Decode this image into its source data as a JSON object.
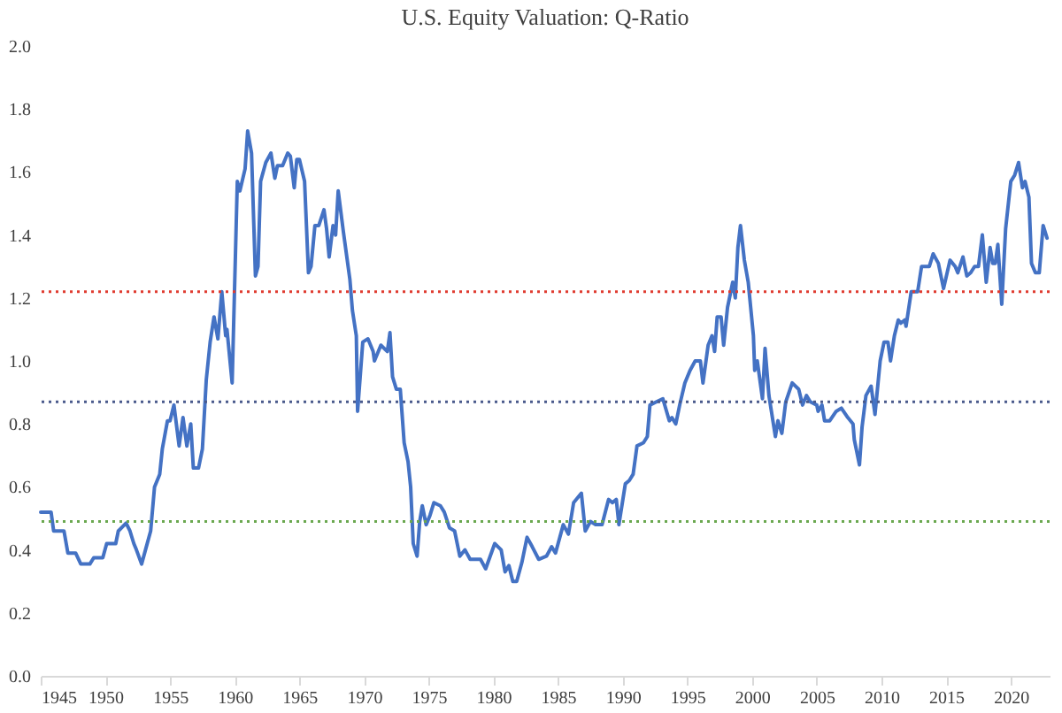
{
  "chart_data": {
    "type": "line",
    "title": "U.S. Equity Valuation: Q-Ratio",
    "xlim": [
      1945,
      2023
    ],
    "xticks": [
      1945,
      1950,
      1955,
      1960,
      1965,
      1970,
      1975,
      1980,
      1985,
      1990,
      1995,
      2000,
      2005,
      2010,
      2015,
      2020
    ],
    "ylim": [
      0,
      2
    ],
    "yticks": [
      {
        "value": 0,
        "label": "0.0"
      },
      0.2,
      0.4,
      0.6,
      0.8,
      {
        "value": 1,
        "label": "1.0"
      },
      1.2,
      1.4,
      1.6,
      1.8,
      {
        "value": 2,
        "label": "2.0"
      }
    ],
    "grid": false,
    "marker": "none",
    "line_style": "solid",
    "ref_lines": [
      {
        "axis": "y",
        "value": 1.22,
        "color": "#e03c31",
        "line_style": "dotted"
      },
      {
        "axis": "y",
        "value": 0.87,
        "color": "#4a5a8c",
        "line_style": "dotted"
      },
      {
        "axis": "y",
        "value": 0.49,
        "color": "#6aa84f",
        "line_style": "dotted"
      }
    ],
    "series": [
      {
        "color": "#4472c4",
        "x": [
          1945.0,
          1945.8,
          1946.0,
          1946.8,
          1947.1,
          1947.7,
          1948.1,
          1948.8,
          1949.1,
          1949.8,
          1950.1,
          1950.8,
          1951.0,
          1951.6,
          1951.9,
          1952.2,
          1952.4,
          1952.8,
          1953.1,
          1953.5,
          1953.8,
          1954.2,
          1954.4,
          1954.8,
          1955.0,
          1955.3,
          1955.7,
          1956.0,
          1956.3,
          1956.6,
          1956.8,
          1957.2,
          1957.5,
          1957.8,
          1958.1,
          1958.4,
          1958.7,
          1959.0,
          1959.3,
          1959.4,
          1959.8,
          1960.2,
          1960.4,
          1960.8,
          1961.0,
          1961.3,
          1961.6,
          1961.8,
          1962.0,
          1962.4,
          1962.8,
          1963.1,
          1963.3,
          1963.7,
          1964.1,
          1964.3,
          1964.6,
          1964.8,
          1965.0,
          1965.4,
          1965.7,
          1965.9,
          1966.2,
          1966.5,
          1966.9,
          1967.1,
          1967.3,
          1967.6,
          1967.8,
          1968.0,
          1968.4,
          1968.9,
          1969.1,
          1969.4,
          1969.5,
          1969.9,
          1970.3,
          1970.7,
          1970.8,
          1971.3,
          1971.8,
          1972.0,
          1972.2,
          1972.5,
          1972.8,
          1973.1,
          1973.4,
          1973.6,
          1973.8,
          1974.1,
          1974.3,
          1974.5,
          1974.8,
          1975.1,
          1975.4,
          1975.9,
          1976.2,
          1976.6,
          1977.0,
          1977.4,
          1977.8,
          1978.2,
          1978.5,
          1979.0,
          1979.4,
          1980.1,
          1980.6,
          1980.9,
          1981.2,
          1981.5,
          1981.8,
          1982.2,
          1982.6,
          1983.0,
          1983.5,
          1984.1,
          1984.5,
          1984.8,
          1985.4,
          1985.8,
          1986.2,
          1986.8,
          1987.1,
          1987.5,
          1987.9,
          1988.4,
          1988.9,
          1989.2,
          1989.5,
          1989.7,
          1990.2,
          1990.5,
          1990.8,
          1991.1,
          1991.6,
          1991.9,
          1992.1,
          1992.6,
          1993.1,
          1993.6,
          1993.8,
          1994.1,
          1994.4,
          1994.8,
          1995.2,
          1995.6,
          1996.0,
          1996.2,
          1996.6,
          1996.9,
          1997.1,
          1997.3,
          1997.6,
          1997.8,
          1998.1,
          1998.5,
          1998.7,
          1998.9,
          1999.1,
          1999.4,
          1999.7,
          2000.1,
          2000.2,
          2000.4,
          2000.8,
          2001.0,
          2001.3,
          2001.8,
          2002.0,
          2002.3,
          2002.6,
          2003.1,
          2003.6,
          2003.9,
          2004.2,
          2004.5,
          2005.0,
          2005.1,
          2005.4,
          2005.6,
          2006.0,
          2006.5,
          2006.9,
          2007.4,
          2007.8,
          2007.9,
          2008.3,
          2008.5,
          2008.8,
          2009.2,
          2009.5,
          2009.9,
          2010.2,
          2010.5,
          2010.7,
          2011.0,
          2011.3,
          2011.5,
          2011.8,
          2011.9,
          2012.3,
          2012.8,
          2013.1,
          2013.4,
          2013.7,
          2014.0,
          2014.4,
          2014.8,
          2015.3,
          2015.7,
          2015.9,
          2016.3,
          2016.6,
          2016.9,
          2017.2,
          2017.5,
          2017.8,
          2018.1,
          2018.4,
          2018.6,
          2018.8,
          2019.0,
          2019.3,
          2019.6,
          2020.0,
          2020.3,
          2020.6,
          2020.9,
          2021.1,
          2021.4,
          2021.6,
          2021.9,
          2022.2,
          2022.5,
          2022.8
        ],
        "values": [
          0.52,
          0.52,
          0.46,
          0.46,
          0.39,
          0.39,
          0.355,
          0.355,
          0.375,
          0.375,
          0.42,
          0.42,
          0.46,
          0.485,
          0.46,
          0.42,
          0.4,
          0.355,
          0.4,
          0.46,
          0.6,
          0.64,
          0.72,
          0.81,
          0.81,
          0.86,
          0.73,
          0.82,
          0.73,
          0.8,
          0.66,
          0.66,
          0.72,
          0.94,
          1.06,
          1.14,
          1.07,
          1.22,
          1.08,
          1.1,
          0.93,
          1.57,
          1.54,
          1.61,
          1.73,
          1.66,
          1.27,
          1.3,
          1.57,
          1.63,
          1.66,
          1.58,
          1.62,
          1.62,
          1.66,
          1.65,
          1.55,
          1.64,
          1.64,
          1.57,
          1.28,
          1.3,
          1.43,
          1.43,
          1.48,
          1.42,
          1.33,
          1.43,
          1.4,
          1.54,
          1.41,
          1.26,
          1.16,
          1.08,
          0.84,
          1.06,
          1.07,
          1.03,
          1.0,
          1.05,
          1.03,
          1.09,
          0.95,
          0.91,
          0.91,
          0.74,
          0.68,
          0.6,
          0.42,
          0.38,
          0.49,
          0.54,
          0.48,
          0.51,
          0.55,
          0.54,
          0.52,
          0.47,
          0.46,
          0.38,
          0.4,
          0.37,
          0.37,
          0.37,
          0.34,
          0.42,
          0.4,
          0.33,
          0.35,
          0.3,
          0.3,
          0.36,
          0.44,
          0.41,
          0.37,
          0.38,
          0.41,
          0.39,
          0.48,
          0.45,
          0.55,
          0.58,
          0.46,
          0.49,
          0.48,
          0.48,
          0.56,
          0.55,
          0.56,
          0.48,
          0.61,
          0.62,
          0.64,
          0.73,
          0.74,
          0.76,
          0.86,
          0.87,
          0.88,
          0.81,
          0.82,
          0.8,
          0.86,
          0.93,
          0.97,
          1.0,
          1.0,
          0.93,
          1.05,
          1.08,
          1.03,
          1.14,
          1.14,
          1.05,
          1.17,
          1.25,
          1.2,
          1.36,
          1.43,
          1.32,
          1.25,
          1.08,
          0.97,
          1.0,
          0.88,
          1.04,
          0.89,
          0.76,
          0.81,
          0.77,
          0.87,
          0.93,
          0.91,
          0.86,
          0.89,
          0.87,
          0.86,
          0.84,
          0.86,
          0.81,
          0.81,
          0.84,
          0.85,
          0.82,
          0.8,
          0.75,
          0.67,
          0.79,
          0.89,
          0.92,
          0.83,
          1.0,
          1.06,
          1.06,
          1.0,
          1.08,
          1.13,
          1.12,
          1.13,
          1.11,
          1.22,
          1.22,
          1.3,
          1.3,
          1.3,
          1.34,
          1.31,
          1.23,
          1.32,
          1.3,
          1.28,
          1.33,
          1.27,
          1.28,
          1.3,
          1.3,
          1.4,
          1.25,
          1.36,
          1.31,
          1.31,
          1.37,
          1.18,
          1.42,
          1.57,
          1.59,
          1.63,
          1.55,
          1.57,
          1.52,
          1.31,
          1.28,
          1.28,
          1.43,
          1.39
        ]
      }
    ]
  }
}
